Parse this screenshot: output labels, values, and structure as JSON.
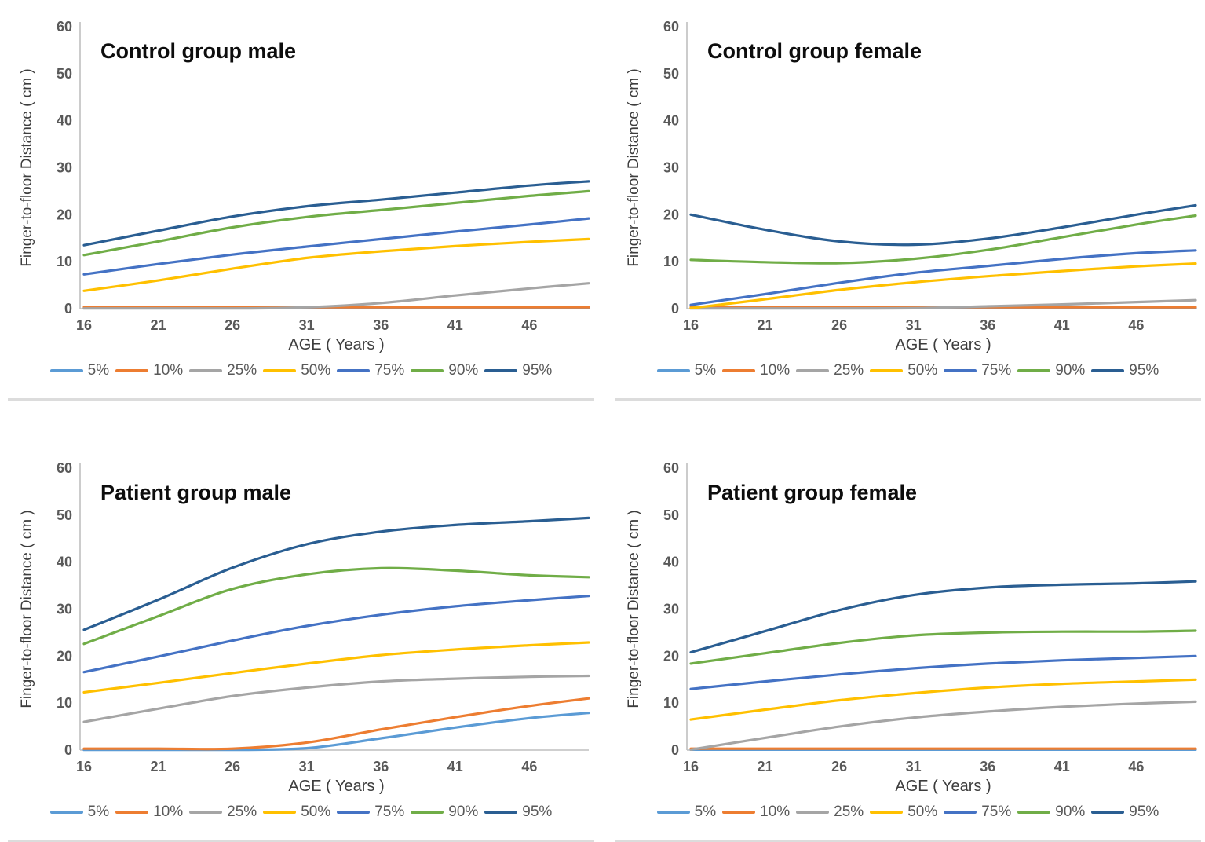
{
  "page": {
    "background": "#ffffff"
  },
  "axis": {
    "ylabel": "Finger-to-floor Distance ( cm )",
    "xlabel": "AGE ( Years )",
    "yticks": [
      0,
      10,
      20,
      30,
      40,
      50,
      60
    ],
    "xticks": [
      16,
      21,
      26,
      31,
      36,
      41,
      46
    ],
    "xlim": [
      16,
      50
    ],
    "ylim": [
      0,
      60
    ],
    "grid": false,
    "axis_line_color": "#BFBFBF",
    "tick_color": "#595959"
  },
  "legend": {
    "position": "bottom",
    "labels": [
      "5%",
      "10%",
      "25%",
      "50%",
      "75%",
      "90%",
      "95%"
    ]
  },
  "series_colors": {
    "5%": "#5B9BD5",
    "10%": "#ED7D31",
    "25%": "#A5A5A5",
    "50%": "#FFC000",
    "75%": "#4472C4",
    "90%": "#70AD47",
    "95%": "#2A5E92"
  },
  "chart_data": [
    {
      "type": "line",
      "title": "Control group male",
      "xlabel": "AGE ( Years )",
      "ylabel": "Finger-to-floor Distance ( cm )",
      "x": [
        16,
        21,
        26,
        31,
        36,
        41,
        46,
        50
      ],
      "series": [
        {
          "name": "5%",
          "values": [
            0.1,
            0.1,
            0.1,
            0.1,
            0.1,
            0.1,
            0.1,
            0.1
          ]
        },
        {
          "name": "10%",
          "values": [
            0.3,
            0.3,
            0.3,
            0.3,
            0.3,
            0.3,
            0.3,
            0.3
          ]
        },
        {
          "name": "25%",
          "values": [
            0.0,
            0.0,
            0.0,
            0.3,
            1.2,
            2.8,
            4.3,
            5.4
          ]
        },
        {
          "name": "50%",
          "values": [
            3.8,
            6.0,
            8.5,
            10.8,
            12.2,
            13.3,
            14.2,
            14.8
          ]
        },
        {
          "name": "75%",
          "values": [
            7.3,
            9.5,
            11.5,
            13.2,
            14.8,
            16.4,
            17.9,
            19.2
          ]
        },
        {
          "name": "90%",
          "values": [
            11.4,
            14.3,
            17.3,
            19.5,
            21.0,
            22.5,
            24.0,
            25.0
          ]
        },
        {
          "name": "95%",
          "values": [
            13.5,
            16.6,
            19.6,
            21.8,
            23.2,
            24.7,
            26.2,
            27.1
          ]
        }
      ]
    },
    {
      "type": "line",
      "title": "Control group female",
      "xlabel": "AGE ( Years )",
      "ylabel": "Finger-to-floor Distance ( cm )",
      "x": [
        16,
        21,
        26,
        31,
        36,
        41,
        46,
        50
      ],
      "series": [
        {
          "name": "5%",
          "values": [
            0.1,
            0.1,
            0.1,
            0.1,
            0.1,
            0.1,
            0.1,
            0.1
          ]
        },
        {
          "name": "10%",
          "values": [
            0.3,
            0.3,
            0.3,
            0.3,
            0.3,
            0.3,
            0.3,
            0.3
          ]
        },
        {
          "name": "25%",
          "values": [
            0.0,
            0.0,
            0.0,
            0.1,
            0.5,
            0.9,
            1.4,
            1.8
          ]
        },
        {
          "name": "50%",
          "values": [
            0.1,
            2.0,
            4.0,
            5.6,
            6.9,
            8.0,
            9.0,
            9.6
          ]
        },
        {
          "name": "75%",
          "values": [
            0.8,
            3.1,
            5.5,
            7.6,
            9.1,
            10.6,
            11.8,
            12.4
          ]
        },
        {
          "name": "90%",
          "values": [
            10.4,
            9.9,
            9.7,
            10.6,
            12.5,
            15.2,
            17.9,
            19.8
          ]
        },
        {
          "name": "95%",
          "values": [
            20.0,
            16.8,
            14.3,
            13.6,
            14.9,
            17.3,
            20.0,
            22.0
          ]
        }
      ]
    },
    {
      "type": "line",
      "title": "Patient group male",
      "xlabel": "AGE ( Years )",
      "ylabel": "Finger-to-floor Distance ( cm )",
      "x": [
        16,
        21,
        26,
        31,
        36,
        41,
        46,
        50
      ],
      "series": [
        {
          "name": "5%",
          "values": [
            0.0,
            0.0,
            0.0,
            0.4,
            2.5,
            4.8,
            6.8,
            7.9
          ]
        },
        {
          "name": "10%",
          "values": [
            0.3,
            0.3,
            0.3,
            1.6,
            4.4,
            7.0,
            9.4,
            11.0
          ]
        },
        {
          "name": "25%",
          "values": [
            6.0,
            8.8,
            11.5,
            13.3,
            14.6,
            15.2,
            15.6,
            15.8
          ]
        },
        {
          "name": "50%",
          "values": [
            12.3,
            14.3,
            16.4,
            18.4,
            20.2,
            21.4,
            22.3,
            22.9
          ]
        },
        {
          "name": "75%",
          "values": [
            16.6,
            19.9,
            23.3,
            26.4,
            28.8,
            30.6,
            31.9,
            32.8
          ]
        },
        {
          "name": "90%",
          "values": [
            22.6,
            28.5,
            34.3,
            37.4,
            38.7,
            38.2,
            37.2,
            36.8
          ]
        },
        {
          "name": "95%",
          "values": [
            25.6,
            32.0,
            38.8,
            43.8,
            46.5,
            47.9,
            48.7,
            49.4
          ]
        }
      ]
    },
    {
      "type": "line",
      "title": "Patient group female",
      "xlabel": "AGE ( Years )",
      "ylabel": "Finger-to-floor Distance ( cm )",
      "x": [
        16,
        21,
        26,
        31,
        36,
        41,
        46,
        50
      ],
      "series": [
        {
          "name": "5%",
          "values": [
            0.1,
            0.1,
            0.1,
            0.1,
            0.1,
            0.1,
            0.1,
            0.1
          ]
        },
        {
          "name": "10%",
          "values": [
            0.3,
            0.3,
            0.3,
            0.3,
            0.3,
            0.3,
            0.3,
            0.3
          ]
        },
        {
          "name": "25%",
          "values": [
            0.1,
            2.6,
            5.0,
            6.9,
            8.2,
            9.2,
            9.9,
            10.3
          ]
        },
        {
          "name": "50%",
          "values": [
            6.5,
            8.6,
            10.6,
            12.1,
            13.3,
            14.1,
            14.6,
            15.0
          ]
        },
        {
          "name": "75%",
          "values": [
            13.0,
            14.6,
            16.1,
            17.4,
            18.4,
            19.1,
            19.6,
            20.0
          ]
        },
        {
          "name": "90%",
          "values": [
            18.4,
            20.6,
            22.8,
            24.4,
            25.0,
            25.2,
            25.2,
            25.4
          ]
        },
        {
          "name": "95%",
          "values": [
            20.8,
            25.3,
            29.8,
            33.0,
            34.6,
            35.2,
            35.5,
            35.9
          ]
        }
      ]
    }
  ]
}
